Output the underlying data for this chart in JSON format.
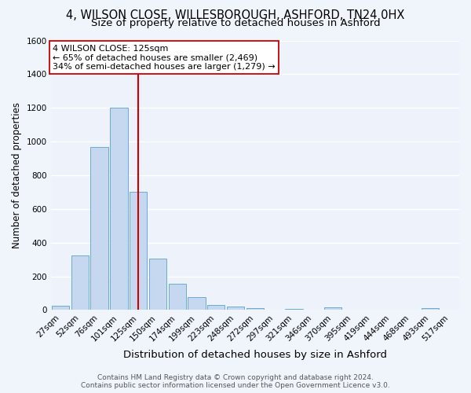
{
  "title": "4, WILSON CLOSE, WILLESBOROUGH, ASHFORD, TN24 0HX",
  "subtitle": "Size of property relative to detached houses in Ashford",
  "xlabel": "Distribution of detached houses by size in Ashford",
  "ylabel": "Number of detached properties",
  "footer_line1": "Contains HM Land Registry data © Crown copyright and database right 2024.",
  "footer_line2": "Contains public sector information licensed under the Open Government Licence v3.0.",
  "bar_labels": [
    "27sqm",
    "52sqm",
    "76sqm",
    "101sqm",
    "125sqm",
    "150sqm",
    "174sqm",
    "199sqm",
    "223sqm",
    "248sqm",
    "272sqm",
    "297sqm",
    "321sqm",
    "346sqm",
    "370sqm",
    "395sqm",
    "419sqm",
    "444sqm",
    "468sqm",
    "493sqm",
    "517sqm"
  ],
  "bar_values": [
    25,
    325,
    970,
    1200,
    700,
    305,
    155,
    75,
    30,
    20,
    12,
    0,
    8,
    0,
    15,
    0,
    0,
    0,
    0,
    12,
    0
  ],
  "bar_color": "#c5d8f0",
  "bar_edgecolor": "#6aabd2",
  "bar_linewidth": 0.7,
  "vline_color": "#cc0000",
  "vline_linewidth": 1.5,
  "vline_x_index": 4,
  "annotation_line1": "4 WILSON CLOSE: 125sqm",
  "annotation_line2": "← 65% of detached houses are smaller (2,469)",
  "annotation_line3": "34% of semi-detached houses are larger (1,279) →",
  "annotation_box_edgecolor": "#cc0000",
  "annotation_box_facecolor": "white",
  "ylim": [
    0,
    1600
  ],
  "yticks": [
    0,
    200,
    400,
    600,
    800,
    1000,
    1200,
    1400,
    1600
  ],
  "bg_color": "#f0f5fc",
  "plot_bg_color": "#edf2fb",
  "grid_color": "white",
  "title_fontsize": 10.5,
  "subtitle_fontsize": 9.5,
  "xlabel_fontsize": 9.5,
  "ylabel_fontsize": 8.5,
  "tick_fontsize": 7.5,
  "annotation_fontsize": 8,
  "footer_fontsize": 6.5
}
